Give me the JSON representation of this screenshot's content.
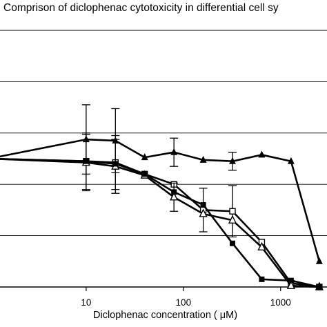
{
  "chart_data": {
    "type": "line",
    "title": "Comprison of diclophenac cytotoxicity in differential cell sy",
    "xlabel": "Diclophenac concentration ( μM)",
    "ylabel": "",
    "x_scale": "log",
    "xlim": [
      1.3,
      3000
    ],
    "ylim": [
      0,
      200
    ],
    "grid": "horizontal",
    "x_ticks": [
      "10",
      "100",
      "1000"
    ],
    "series": [
      {
        "marker": "filled-triangle",
        "x": [
          1,
          10,
          20,
          40,
          80,
          160,
          320,
          640,
          1280,
          2500
        ],
        "y": [
          100,
          115,
          114,
          101,
          105,
          99,
          98,
          103,
          98,
          20
        ],
        "err": [
          0,
          27,
          25,
          0,
          11,
          0,
          7,
          0,
          0,
          0
        ]
      },
      {
        "marker": "open-square",
        "x": [
          1,
          10,
          20,
          40,
          80,
          160,
          320,
          640,
          1280,
          2500
        ],
        "y": [
          100,
          98,
          97,
          88,
          80,
          60,
          59,
          35,
          3,
          0
        ],
        "err": [
          0,
          22,
          21,
          0,
          0,
          17,
          20,
          0,
          0,
          0
        ]
      },
      {
        "marker": "open-triangle",
        "x": [
          1,
          10,
          20,
          40,
          80,
          160,
          320,
          640,
          1280,
          2500
        ],
        "y": [
          100,
          97,
          94,
          87,
          70,
          57,
          52,
          31,
          1,
          0
        ],
        "err": [
          0,
          22,
          21,
          0,
          11,
          0,
          0,
          0,
          0,
          0
        ]
      },
      {
        "marker": "filled-square",
        "x": [
          1,
          10,
          20,
          40,
          80,
          160,
          320,
          640,
          1280,
          2500
        ],
        "y": [
          100,
          98,
          96,
          88,
          74,
          64,
          34,
          6,
          5,
          0
        ],
        "err": [
          0,
          0,
          0,
          0,
          0,
          0,
          0,
          0,
          0,
          0
        ]
      }
    ]
  }
}
